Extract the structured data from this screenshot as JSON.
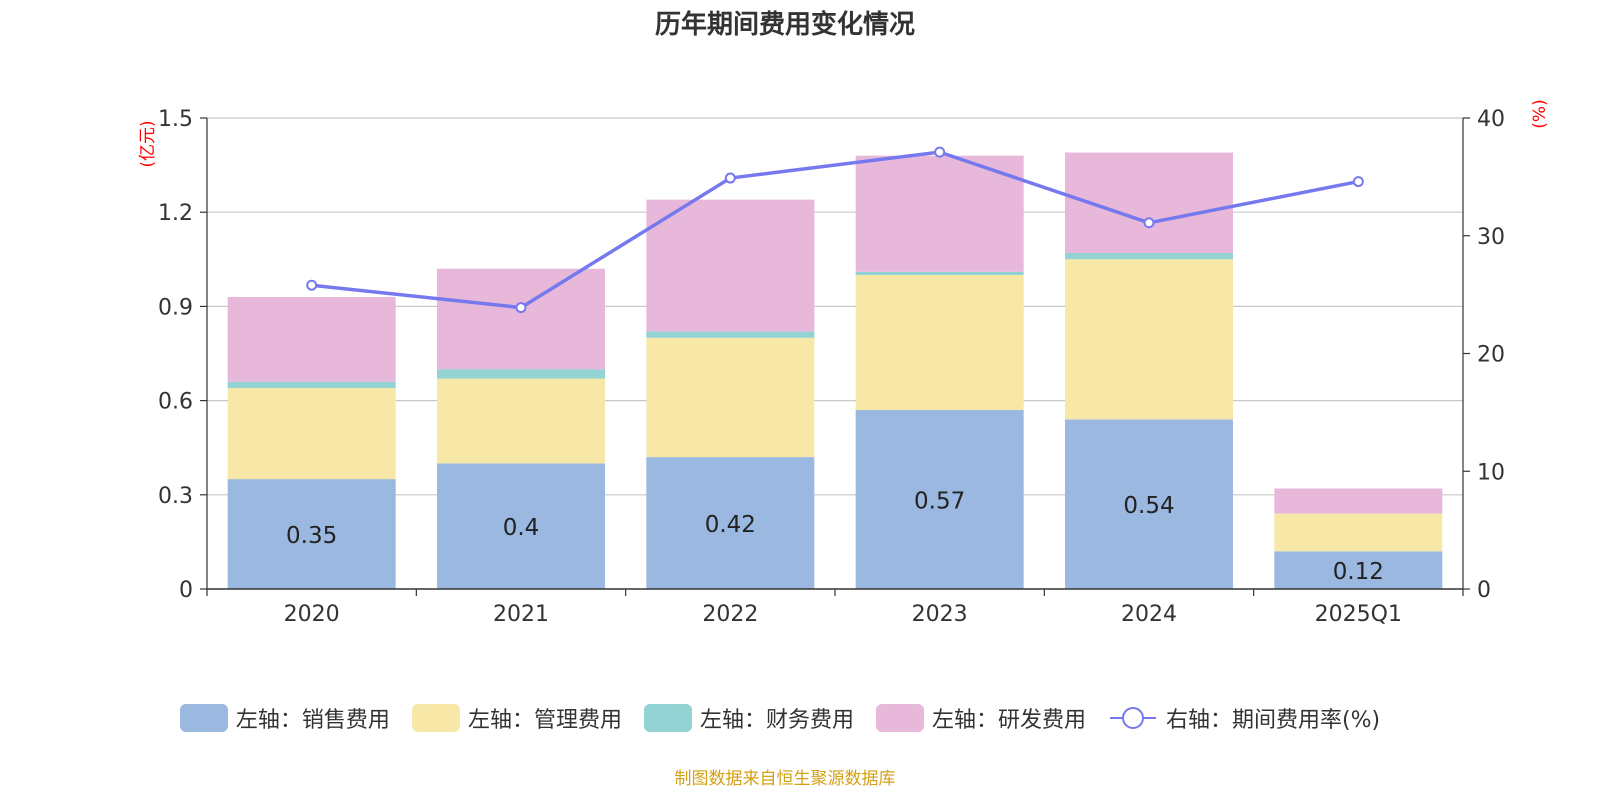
{
  "title": "历年期间费用变化情况",
  "source_note": "制图数据来自恒生聚源数据库",
  "colors": {
    "sales": "#9bb8e1",
    "admin": "#f8e8a8",
    "finance": "#93d3d3",
    "rnd": "#e7b8da",
    "rate_line": "#7679ee",
    "grid": "#c8c8c8",
    "axis": "#333333",
    "unit": "#ff0000",
    "source": "#d4a017"
  },
  "legend": [
    {
      "key": "sales",
      "label": "左轴：销售费用",
      "icon": "swatch"
    },
    {
      "key": "admin",
      "label": "左轴：管理费用",
      "icon": "swatch"
    },
    {
      "key": "finance",
      "label": "左轴：财务费用",
      "icon": "swatch"
    },
    {
      "key": "rnd",
      "label": "左轴：研发费用",
      "icon": "swatch"
    },
    {
      "key": "rate_line",
      "label": "右轴：期间费用率(%)",
      "icon": "line-circle-icon"
    }
  ],
  "chart_data": {
    "type": "bar",
    "stacked": true,
    "categories": [
      "2020",
      "2021",
      "2022",
      "2023",
      "2024",
      "2025Q1"
    ],
    "series": [
      {
        "name": "左轴：销售费用",
        "key": "sales",
        "axis": "left",
        "values": [
          0.35,
          0.4,
          0.42,
          0.57,
          0.54,
          0.12
        ],
        "labels": [
          "0.35",
          "0.4",
          "0.42",
          "0.57",
          "0.54",
          "0.12"
        ]
      },
      {
        "name": "左轴：管理费用",
        "key": "admin",
        "axis": "left",
        "values": [
          0.29,
          0.27,
          0.38,
          0.43,
          0.51,
          0.12
        ]
      },
      {
        "name": "左轴：财务费用",
        "key": "finance",
        "axis": "left",
        "values": [
          0.02,
          0.03,
          0.02,
          0.01,
          0.02,
          0.0
        ]
      },
      {
        "name": "左轴：研发费用",
        "key": "rnd",
        "axis": "left",
        "values": [
          0.27,
          0.32,
          0.42,
          0.37,
          0.32,
          0.08
        ]
      },
      {
        "name": "右轴：期间费用率(%)",
        "key": "rate_line",
        "axis": "right",
        "type": "line",
        "values": [
          25.8,
          23.9,
          34.9,
          37.1,
          31.1,
          34.6
        ]
      }
    ],
    "y_left": {
      "unit": "(亿元)",
      "min": 0,
      "max": 1.5,
      "ticks": [
        0,
        0.3,
        0.6,
        0.9,
        1.2,
        1.5
      ],
      "tick_labels": [
        "0",
        "0.3",
        "0.6",
        "0.9",
        "1.2",
        "1.5"
      ]
    },
    "y_right": {
      "unit": "(%)",
      "min": 0,
      "max": 40,
      "ticks": [
        0,
        10,
        20,
        30,
        40
      ],
      "tick_labels": [
        "0",
        "10",
        "20",
        "30",
        "40"
      ]
    },
    "grid": true,
    "legend_position": "bottom"
  }
}
